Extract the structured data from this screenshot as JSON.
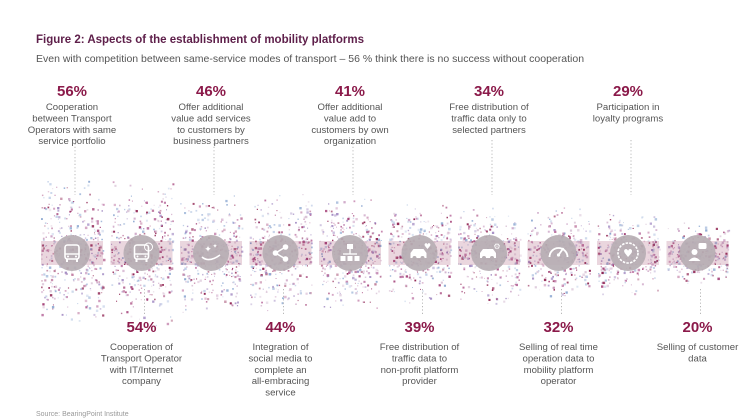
{
  "header": {
    "title": "Figure 2: Aspects of the establishment of mobility platforms",
    "subtitle": "Even with competition between same-service modes of transport – 56 % think there is no success without cooperation",
    "source": "Source: BearingPoint Institute"
  },
  "colors": {
    "accent": "#8b1a4a",
    "icon_grey": "#b6aeb3",
    "connector": "#b8b8b8",
    "text": "#555555"
  },
  "chart_data": {
    "type": "bar",
    "title": "Figure 2: Aspects of the establishment of mobility platforms",
    "subtitle": "Even with competition between same-service modes of transport – 56 % think there is no success without cooperation",
    "unit": "%",
    "categories": [
      "Cooperation between Transport Operators with same service portfolio",
      "Cooperation of Transport Operator with IT/Internet company",
      "Offer additional value add services to customers by business partners",
      "Integration of social media to complete an all-embracing service",
      "Offer additional value add to customers by own organization",
      "Free distribution of traffic data to non-profit platform provider",
      "Free distribution of traffic data only to selected partners",
      "Selling of real time operation data to mobility platform operator",
      "Participation in loyalty programs",
      "Selling of customer data"
    ],
    "values": [
      56,
      54,
      46,
      44,
      41,
      39,
      34,
      32,
      29,
      20
    ],
    "value_labels": [
      "56%",
      "54%",
      "46%",
      "44%",
      "41%",
      "39%",
      "34%",
      "32%",
      "29%",
      "20%"
    ],
    "label_lines": [
      [
        "Cooperation",
        "between Transport",
        "Operators with same",
        "service portfolio"
      ],
      [
        "Cooperation of",
        "Transport Operator",
        "with IT/Internet",
        "company"
      ],
      [
        "Offer additional",
        "value add services",
        "to customers by",
        "business partners"
      ],
      [
        "Integration of",
        "social media to",
        "complete an",
        "all-embracing",
        "service"
      ],
      [
        "Offer additional",
        "value add to",
        "customers by own",
        "organization"
      ],
      [
        "Free distribution of",
        "traffic data to",
        "non-profit platform",
        "provider"
      ],
      [
        "Free distribution of",
        "traffic data only to",
        "selected partners"
      ],
      [
        "Selling of real time",
        "operation data to",
        "mobility platform",
        "operator"
      ],
      [
        "Participation in",
        "loyalty programs"
      ],
      [
        "Selling of customer",
        "data"
      ]
    ],
    "label_position": [
      "top",
      "bottom",
      "top",
      "bottom",
      "top",
      "bottom",
      "top",
      "bottom",
      "top",
      "bottom"
    ],
    "icons": [
      "bus-icon",
      "globe-bus-icon",
      "hand-sparkle-icon",
      "share-icon",
      "network-icon",
      "car-heart-icon",
      "car-gear-icon",
      "gauge-icon",
      "heart-badge-icon",
      "person-chat-icon"
    ]
  }
}
